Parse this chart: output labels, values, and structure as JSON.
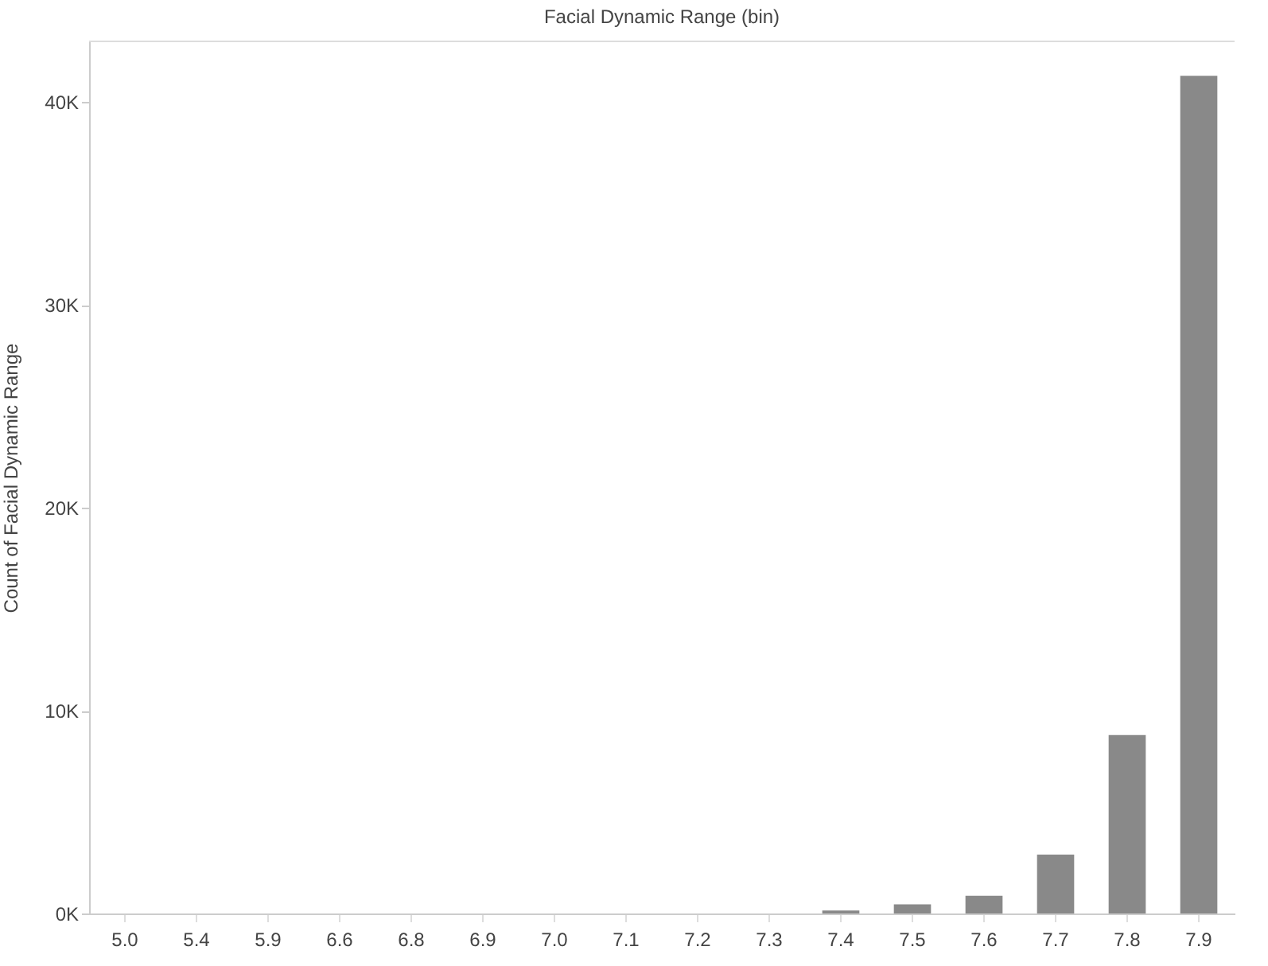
{
  "chart_data": {
    "type": "bar",
    "xlabel": "Facial Dynamic Range (bin)",
    "ylabel": "Count of Facial Dynamic Range",
    "categories": [
      "5.0",
      "5.4",
      "5.9",
      "6.6",
      "6.8",
      "6.9",
      "7.0",
      "7.1",
      "7.2",
      "7.3",
      "7.4",
      "7.5",
      "7.6",
      "7.7",
      "7.8",
      "7.9"
    ],
    "series": [
      {
        "color": "#898989",
        "values": [
          0,
          0,
          0,
          0,
          0,
          0,
          0,
          0,
          0,
          0,
          150,
          450,
          870,
          2900,
          8800,
          41300
        ]
      }
    ],
    "ylim": [
      0,
      43000
    ],
    "yticks": [
      {
        "value": 0,
        "label": "0K"
      },
      {
        "value": 10000,
        "label": "10K"
      },
      {
        "value": 20000,
        "label": "20K"
      },
      {
        "value": 30000,
        "label": "30K"
      },
      {
        "value": 40000,
        "label": "40K"
      }
    ],
    "grid": false,
    "legend": false
  }
}
